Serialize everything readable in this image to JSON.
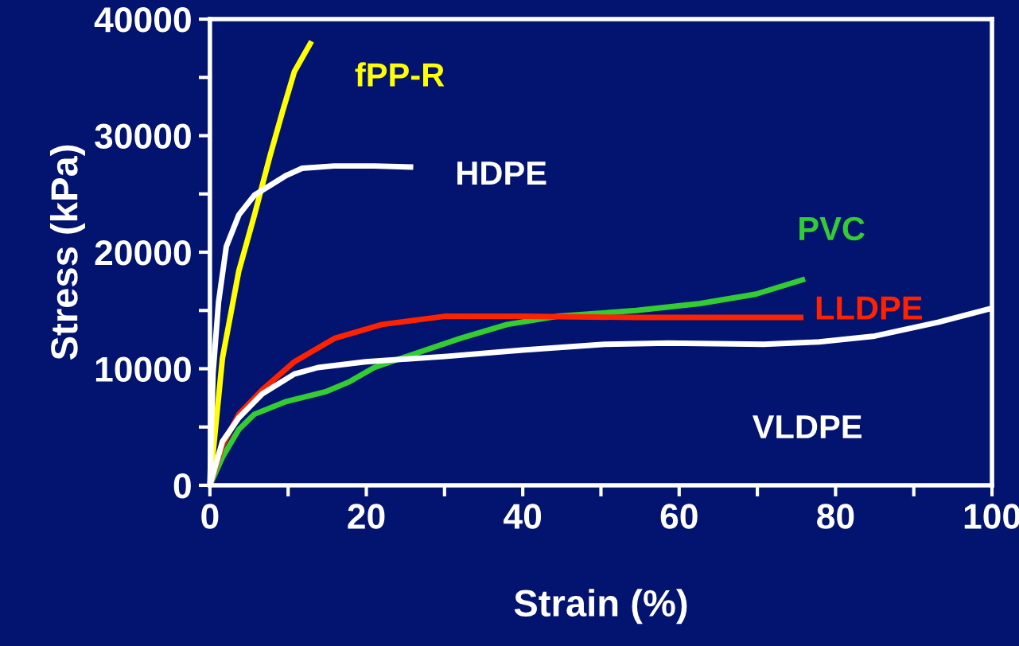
{
  "chart_data": {
    "type": "line",
    "xlabel": "Strain (%)",
    "ylabel": "Stress (kPa)",
    "xlim": [
      0,
      100
    ],
    "ylim": [
      0,
      40000
    ],
    "xticks": [
      0,
      {
        "value": 10,
        "label": null
      },
      20,
      {
        "value": 30,
        "label": null
      },
      40,
      {
        "value": 50,
        "label": null
      },
      60,
      {
        "value": 70,
        "label": null
      },
      80,
      {
        "value": 90,
        "label": null
      },
      100
    ],
    "yticks": [
      0,
      {
        "value": 5000,
        "label": null
      },
      10000,
      {
        "value": 15000,
        "label": null
      },
      20000,
      {
        "value": 25000,
        "label": null
      },
      30000,
      {
        "value": 35000,
        "label": null
      },
      40000
    ],
    "grid": false,
    "legend": false,
    "marker": "none",
    "line_style": "solid",
    "series": [
      {
        "name": "fPP-R",
        "color": "#ffff00",
        "x": [
          0,
          1.6,
          3.7,
          5.7,
          7.7,
          9.3,
          10.8,
          13.0
        ],
        "values": [
          0,
          10900,
          18400,
          23200,
          28300,
          32100,
          35500,
          38100
        ]
      },
      {
        "name": "HDPE",
        "color": "#ffffff",
        "x": [
          0,
          0.4,
          1.1,
          2.1,
          3.7,
          5.7,
          9.8,
          11.8,
          15.9,
          21,
          26
        ],
        "values": [
          0,
          9600,
          15700,
          20500,
          23200,
          24900,
          26600,
          27200,
          27400,
          27400,
          27300
        ]
      },
      {
        "name": "PVC",
        "color": "#33cc33",
        "x": [
          0,
          1.6,
          3.7,
          5.7,
          9.8,
          14.9,
          17.9,
          21,
          26,
          32,
          38,
          44.4,
          54.5,
          62.7,
          69.8,
          76.1
        ],
        "values": [
          0,
          2400,
          4800,
          6100,
          7200,
          8050,
          8900,
          10100,
          11250,
          12600,
          13800,
          14500,
          15000,
          15600,
          16400,
          17700
        ]
      },
      {
        "name": "LLDPE",
        "color": "#ff2200",
        "x": [
          0,
          1.6,
          3.7,
          6.7,
          10.8,
          15.9,
          22,
          30,
          40,
          54.5,
          75.9
        ],
        "values": [
          0,
          3400,
          6100,
          8200,
          10600,
          12600,
          13800,
          14500,
          14500,
          14400,
          14400
        ]
      },
      {
        "name": "VLDPE",
        "color": "#ffffff",
        "x": [
          0,
          1.6,
          3.7,
          6.7,
          10.8,
          13.8,
          19.9,
          30,
          40,
          50.5,
          58.6,
          70.8,
          77.9,
          85,
          93.2,
          100
        ],
        "values": [
          0,
          3750,
          5800,
          7850,
          9550,
          10100,
          10600,
          11050,
          11600,
          12100,
          12200,
          12100,
          12300,
          12800,
          14000,
          15200
        ]
      }
    ]
  }
}
